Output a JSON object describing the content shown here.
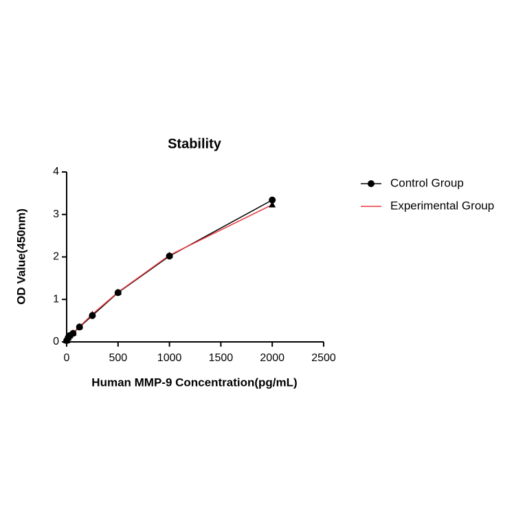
{
  "chart_data": {
    "type": "line",
    "title": "Stability",
    "x_label": "Human MMP-9 Concentration(pg/mL)",
    "y_label": "OD Value(450nm)",
    "x": [
      0,
      15.6,
      31.25,
      62.5,
      125,
      250,
      500,
      1000,
      2000
    ],
    "series": [
      {
        "name": "Control Group",
        "color": "#000000",
        "marker": "circle",
        "marker_color": "#000000",
        "values": [
          0.03,
          0.1,
          0.15,
          0.2,
          0.35,
          0.62,
          1.16,
          2.02,
          3.34
        ]
      },
      {
        "name": "Experimental Group",
        "color": "#e8383d",
        "marker": "triangle",
        "marker_color": "#000000",
        "values": [
          0.03,
          0.1,
          0.15,
          0.21,
          0.36,
          0.65,
          1.17,
          2.04,
          3.23
        ]
      }
    ],
    "xlim": [
      0,
      2500
    ],
    "xticks": [
      0,
      500,
      1000,
      1500,
      2000,
      2500
    ],
    "ylim": [
      0,
      4
    ],
    "yticks": [
      0,
      1,
      2,
      3,
      4
    ],
    "grid": false,
    "legend": "right"
  }
}
